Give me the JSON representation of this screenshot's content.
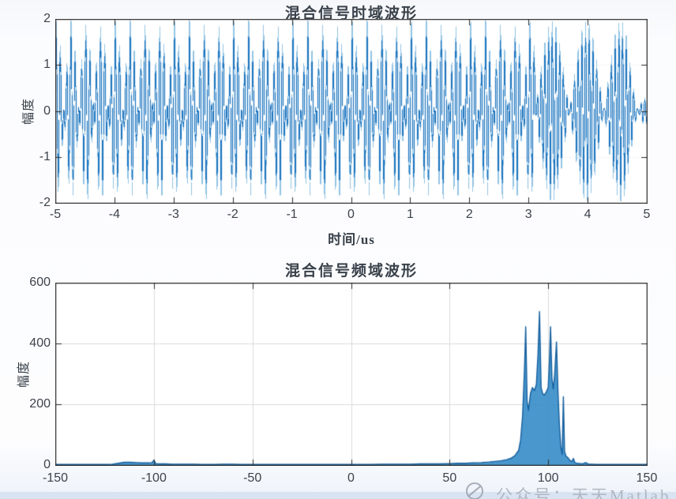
{
  "colors": {
    "signal_blue": "#1b74bf",
    "signal_light_blue": "#93c4e4",
    "spectrum_fill": "#3a8ec9",
    "spectrum_line": "#155f9e",
    "grid_light": "#e9e9e9",
    "grid_freq": "#dcdcdc",
    "axis": "#2b2b2b",
    "tick_text": "#3d434b",
    "page_bg": "#f6f7fa",
    "bottom_strip": "#d9e3f2",
    "watermark_gray": "#a9afba"
  },
  "chart_data": [
    {
      "type": "line",
      "title": "混合信号时域波形",
      "xlabel": "时间/us",
      "ylabel": "幅度",
      "xlim": [
        -5,
        5
      ],
      "ylim": [
        -2,
        2
      ],
      "xticks": [
        -5,
        -4,
        -3,
        -2,
        -1,
        0,
        1,
        2,
        3,
        4,
        5
      ],
      "yticks": [
        2,
        1,
        0,
        -1,
        -2
      ],
      "grid": true,
      "signal": {
        "description": "dense two-tone beat waveform for t in [-5,3.1] us, amplitude-modulated burst lobes for t in [3.1,5] us, peak amplitude 2",
        "beat": {
          "t_start": -5,
          "t_end": 3.1,
          "components": [
            {
              "amp": 1.0,
              "freq_per_us": 16,
              "phase": 0
            },
            {
              "amp": 0.92,
              "freq_per_us": 12,
              "phase": 0.6
            },
            {
              "amp": 0.08,
              "freq_per_us": 5,
              "phase": 0
            }
          ]
        },
        "burst": {
          "t_start": 3.1,
          "t_end": 5,
          "carrier_freq_per_us": 16,
          "peak_amp": 1.95,
          "lobe_period_us": 0.58,
          "lobe_start_us": 3.1
        }
      }
    },
    {
      "type": "line",
      "title": "混合信号频域波形",
      "xlabel": "",
      "ylabel": "幅度",
      "xlim": [
        -150,
        150
      ],
      "ylim": [
        0,
        600
      ],
      "xticks": [
        -150,
        -100,
        -50,
        0,
        50,
        100,
        150
      ],
      "yticks": [
        0,
        200,
        400,
        600
      ],
      "grid": true,
      "main_peaks": [
        {
          "freq": 89,
          "amp": 455
        },
        {
          "freq": 96,
          "amp": 505
        },
        {
          "freq": 101,
          "amp": 455
        },
        {
          "freq": 104,
          "amp": 405
        }
      ],
      "points": [
        [
          -150,
          2
        ],
        [
          -145,
          2
        ],
        [
          -140,
          2
        ],
        [
          -135,
          2
        ],
        [
          -130,
          2
        ],
        [
          -125,
          2
        ],
        [
          -121,
          3
        ],
        [
          -118,
          6
        ],
        [
          -115,
          9
        ],
        [
          -112,
          9
        ],
        [
          -109,
          8
        ],
        [
          -106,
          7
        ],
        [
          -103,
          7
        ],
        [
          -101,
          8
        ],
        [
          -100,
          16
        ],
        [
          -99,
          5
        ],
        [
          -97,
          4
        ],
        [
          -94,
          4
        ],
        [
          -91,
          3
        ],
        [
          -88,
          3
        ],
        [
          -84,
          3
        ],
        [
          -80,
          3
        ],
        [
          -75,
          2
        ],
        [
          -70,
          2
        ],
        [
          -65,
          3
        ],
        [
          -60,
          3
        ],
        [
          -55,
          2
        ],
        [
          -50,
          2
        ],
        [
          -45,
          2
        ],
        [
          -40,
          2
        ],
        [
          -35,
          2
        ],
        [
          -30,
          2
        ],
        [
          -25,
          2
        ],
        [
          -20,
          2
        ],
        [
          -15,
          2
        ],
        [
          -10,
          2
        ],
        [
          -5,
          2
        ],
        [
          0,
          2
        ],
        [
          5,
          2
        ],
        [
          10,
          2
        ],
        [
          15,
          3
        ],
        [
          20,
          3
        ],
        [
          25,
          3
        ],
        [
          30,
          3
        ],
        [
          35,
          4
        ],
        [
          40,
          4
        ],
        [
          45,
          4
        ],
        [
          50,
          5
        ],
        [
          54,
          6
        ],
        [
          58,
          6
        ],
        [
          62,
          7
        ],
        [
          66,
          8
        ],
        [
          70,
          10
        ],
        [
          73,
          12
        ],
        [
          76,
          14
        ],
        [
          79,
          18
        ],
        [
          81,
          22
        ],
        [
          83,
          30
        ],
        [
          85,
          48
        ],
        [
          86,
          82
        ],
        [
          87,
          160
        ],
        [
          88,
          320
        ],
        [
          88.6,
          455
        ],
        [
          89.3,
          210
        ],
        [
          90,
          180
        ],
        [
          91,
          235
        ],
        [
          92,
          255
        ],
        [
          93,
          245
        ],
        [
          94,
          265
        ],
        [
          94.8,
          360
        ],
        [
          95.6,
          505
        ],
        [
          96.4,
          255
        ],
        [
          97.2,
          235
        ],
        [
          98,
          230
        ],
        [
          99,
          240
        ],
        [
          100,
          255
        ],
        [
          100.6,
          340
        ],
        [
          101.2,
          455
        ],
        [
          101.9,
          285
        ],
        [
          102.6,
          250
        ],
        [
          103.3,
          300
        ],
        [
          104.2,
          405
        ],
        [
          105,
          235
        ],
        [
          105.7,
          130
        ],
        [
          106.4,
          60
        ],
        [
          107.1,
          35
        ],
        [
          107.7,
          225
        ],
        [
          108.3,
          45
        ],
        [
          109,
          30
        ],
        [
          110,
          24
        ],
        [
          111,
          16
        ],
        [
          112,
          11
        ],
        [
          112.8,
          22
        ],
        [
          113.5,
          8
        ],
        [
          114.5,
          6
        ],
        [
          116,
          5
        ],
        [
          117.5,
          4
        ],
        [
          119,
          8
        ],
        [
          120.5,
          3
        ],
        [
          122,
          3
        ],
        [
          125,
          2
        ],
        [
          128,
          2
        ],
        [
          132,
          2
        ],
        [
          136,
          2
        ],
        [
          140,
          2
        ],
        [
          145,
          2
        ],
        [
          150,
          2
        ]
      ]
    }
  ],
  "watermark": {
    "text": "公众号：天天Matlab",
    "icon": "logo-circle-icon"
  }
}
